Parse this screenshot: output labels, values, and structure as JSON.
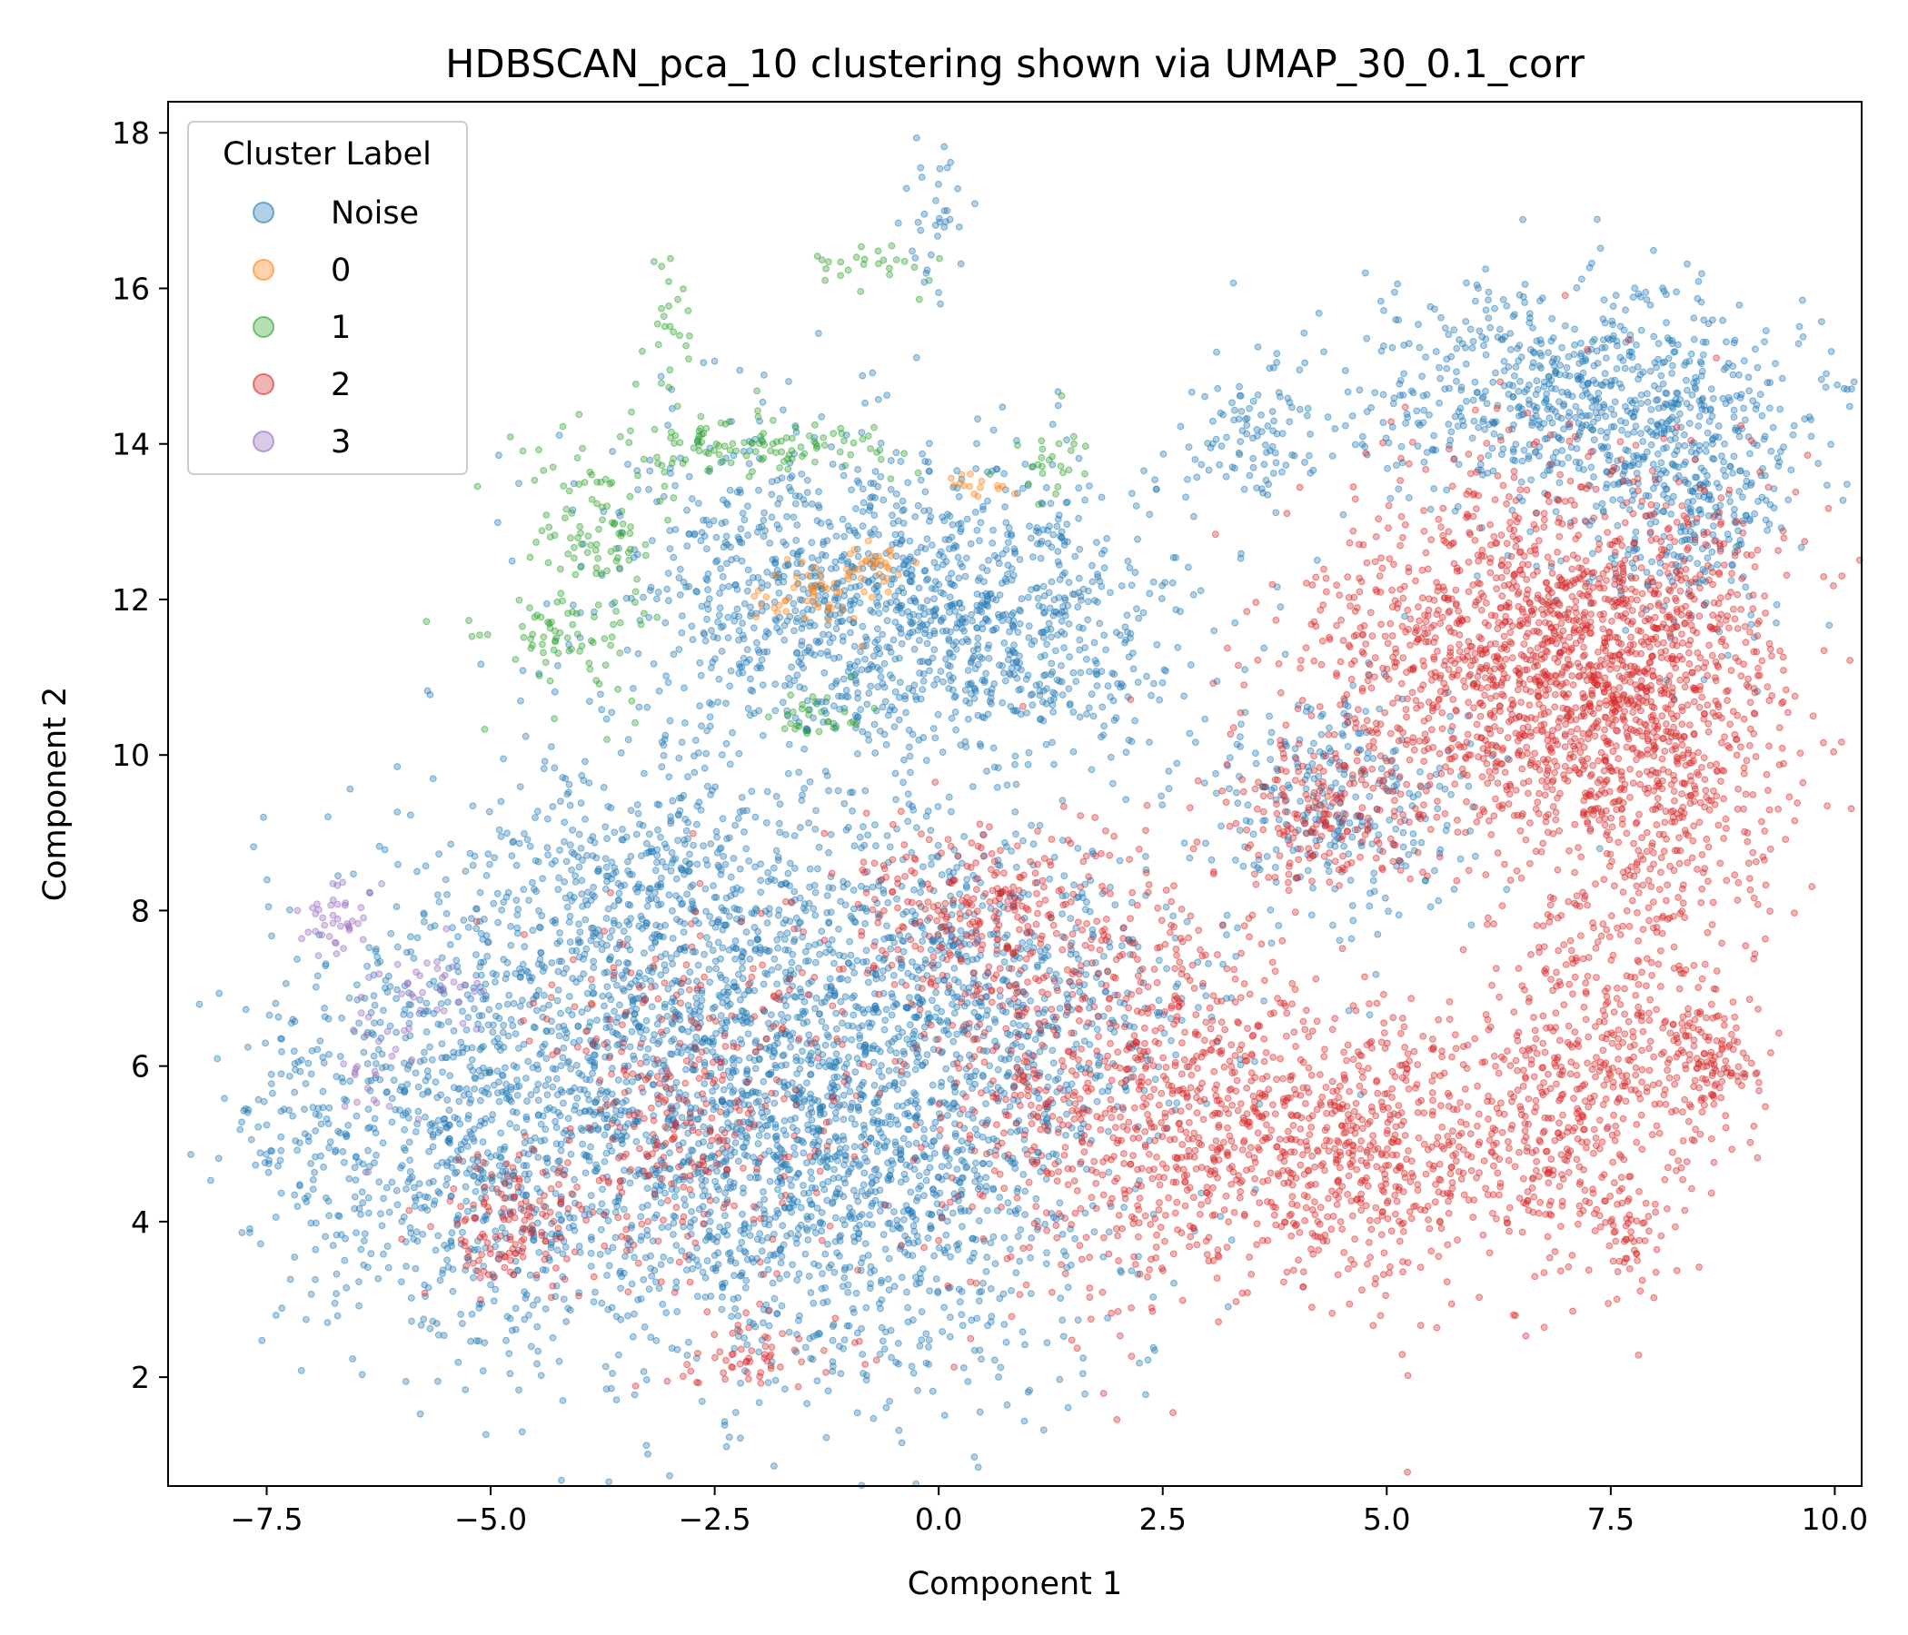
{
  "chart_data": {
    "type": "scatter",
    "title": "HDBSCAN_pca_10 clustering shown via UMAP_30_0.1_corr",
    "xlabel": "Component 1",
    "ylabel": "Component 2",
    "xlim": [
      -8.6,
      10.3
    ],
    "ylim": [
      0.6,
      18.4
    ],
    "xticks": [
      -7.5,
      -5.0,
      -2.5,
      0.0,
      2.5,
      5.0,
      7.5,
      10.0
    ],
    "xtick_labels": [
      "−7.5",
      "−5.0",
      "−2.5",
      "0.0",
      "2.5",
      "5.0",
      "7.5",
      "10.0"
    ],
    "yticks": [
      2,
      4,
      6,
      8,
      10,
      12,
      14,
      16,
      18
    ],
    "ytick_labels": [
      "2",
      "4",
      "6",
      "8",
      "10",
      "12",
      "14",
      "16",
      "18"
    ],
    "grid": false,
    "legend": {
      "title": "Cluster Label",
      "placement": "top-left",
      "entries": [
        "Noise",
        "0",
        "1",
        "2",
        "3"
      ]
    },
    "series": [
      {
        "name": "Noise",
        "color": "#1f77b4",
        "regions": [
          {
            "cx": -1.0,
            "cy": 12.0,
            "sx": 1.5,
            "sy": 1.1,
            "n": 1100
          },
          {
            "cx": 1.0,
            "cy": 11.5,
            "sx": 0.9,
            "sy": 0.9,
            "n": 350
          },
          {
            "cx": -3.2,
            "cy": 5.6,
            "sx": 1.6,
            "sy": 1.6,
            "n": 1500
          },
          {
            "cx": -0.6,
            "cy": 5.2,
            "sx": 1.4,
            "sy": 1.7,
            "n": 1500
          },
          {
            "cx": -5.6,
            "cy": 5.0,
            "sx": 0.9,
            "sy": 1.4,
            "n": 500
          },
          {
            "cx": -3.0,
            "cy": 8.2,
            "sx": 1.3,
            "sy": 0.9,
            "n": 450
          },
          {
            "cx": 1.2,
            "cy": 7.2,
            "sx": 1.2,
            "sy": 1.0,
            "n": 350
          },
          {
            "cx": 7.0,
            "cy": 14.6,
            "sx": 1.2,
            "sy": 0.8,
            "n": 700
          },
          {
            "cx": 8.4,
            "cy": 13.4,
            "sx": 0.6,
            "sy": 0.9,
            "n": 350
          },
          {
            "cx": 4.5,
            "cy": 9.5,
            "sx": 0.8,
            "sy": 0.8,
            "n": 300
          },
          {
            "cx": 3.5,
            "cy": 14.0,
            "sx": 0.4,
            "sy": 0.5,
            "n": 90
          },
          {
            "cx": -7.3,
            "cy": 5.4,
            "sx": 0.3,
            "sy": 0.6,
            "n": 60
          },
          {
            "cx": 0.0,
            "cy": 16.8,
            "sx": 0.2,
            "sy": 0.5,
            "n": 35
          }
        ]
      },
      {
        "name": "0",
        "color": "#ff7f0e",
        "regions": [
          {
            "cx": -1.5,
            "cy": 12.0,
            "sx": 0.35,
            "sy": 0.25,
            "n": 45
          },
          {
            "cx": -0.8,
            "cy": 12.4,
            "sx": 0.25,
            "sy": 0.15,
            "n": 30
          },
          {
            "cx": 0.5,
            "cy": 13.5,
            "sx": 0.2,
            "sy": 0.1,
            "n": 15
          }
        ]
      },
      {
        "name": "1",
        "color": "#2ca02c",
        "regions": [
          {
            "cx": -2.0,
            "cy": 14.0,
            "sx": 0.8,
            "sy": 0.2,
            "n": 110
          },
          {
            "cx": -3.8,
            "cy": 12.5,
            "sx": 0.45,
            "sy": 1.0,
            "n": 130
          },
          {
            "cx": -4.4,
            "cy": 11.5,
            "sx": 0.35,
            "sy": 0.2,
            "n": 35
          },
          {
            "cx": -1.4,
            "cy": 10.5,
            "sx": 0.3,
            "sy": 0.15,
            "n": 30
          },
          {
            "cx": -3.0,
            "cy": 15.5,
            "sx": 0.15,
            "sy": 0.6,
            "n": 25
          },
          {
            "cx": -0.8,
            "cy": 16.3,
            "sx": 0.4,
            "sy": 0.15,
            "n": 25
          },
          {
            "cx": 1.2,
            "cy": 13.8,
            "sx": 0.2,
            "sy": 0.3,
            "n": 25
          }
        ]
      },
      {
        "name": "2",
        "color": "#d62728",
        "regions": [
          {
            "cx": 6.8,
            "cy": 11.2,
            "sx": 1.3,
            "sy": 1.2,
            "n": 1700
          },
          {
            "cx": 8.1,
            "cy": 10.0,
            "sx": 0.6,
            "sy": 1.5,
            "n": 500
          },
          {
            "cx": 4.6,
            "cy": 5.0,
            "sx": 1.4,
            "sy": 0.9,
            "n": 900
          },
          {
            "cx": 2.0,
            "cy": 5.8,
            "sx": 1.1,
            "sy": 1.4,
            "n": 700
          },
          {
            "cx": 7.3,
            "cy": 6.0,
            "sx": 0.6,
            "sy": 1.2,
            "n": 400
          },
          {
            "cx": 8.6,
            "cy": 6.0,
            "sx": 0.3,
            "sy": 0.4,
            "n": 130
          },
          {
            "cx": -2.8,
            "cy": 5.5,
            "sx": 0.9,
            "sy": 1.2,
            "n": 350
          },
          {
            "cx": -4.8,
            "cy": 4.0,
            "sx": 0.4,
            "sy": 0.4,
            "n": 120
          },
          {
            "cx": 0.5,
            "cy": 8.0,
            "sx": 0.8,
            "sy": 0.6,
            "n": 250
          },
          {
            "cx": 4.2,
            "cy": 9.2,
            "sx": 0.6,
            "sy": 0.5,
            "n": 180
          },
          {
            "cx": -2.0,
            "cy": 2.3,
            "sx": 0.5,
            "sy": 0.3,
            "n": 60
          },
          {
            "cx": 7.7,
            "cy": 3.8,
            "sx": 0.2,
            "sy": 0.3,
            "n": 40
          }
        ]
      },
      {
        "name": "3",
        "color": "#9467bd",
        "regions": [
          {
            "cx": -6.7,
            "cy": 7.9,
            "sx": 0.2,
            "sy": 0.25,
            "n": 40
          },
          {
            "cx": -5.6,
            "cy": 7.0,
            "sx": 0.35,
            "sy": 0.25,
            "n": 35
          },
          {
            "cx": -6.3,
            "cy": 6.0,
            "sx": 0.25,
            "sy": 0.4,
            "n": 25
          }
        ]
      }
    ]
  }
}
